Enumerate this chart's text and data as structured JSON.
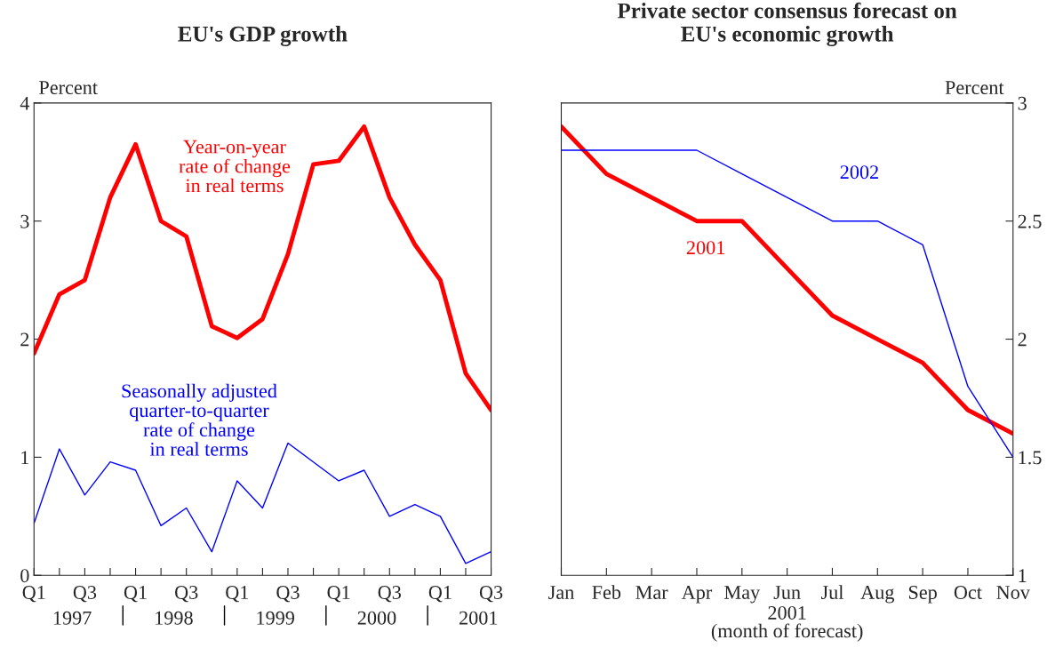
{
  "chart_data": [
    {
      "type": "line",
      "title": "EU's GDP growth",
      "ylabel": "Percent",
      "categories": [
        "Q1",
        null,
        "Q3",
        null,
        "Q1",
        null,
        "Q3",
        null,
        "Q1",
        null,
        "Q3",
        null,
        "Q1",
        null,
        "Q3",
        null,
        "Q1",
        null,
        "Q3"
      ],
      "series": [
        {
          "name": "Year-on-year\nrate of change\nin real terms",
          "color": "#ff0000",
          "values": [
            1.88,
            2.38,
            2.5,
            3.2,
            3.65,
            3.0,
            2.87,
            2.11,
            2.01,
            2.17,
            2.72,
            3.48,
            3.51,
            3.8,
            3.2,
            2.8,
            2.5,
            1.71,
            1.4
          ]
        },
        {
          "name": "Seasonally adjusted\nquarter-to-quarter\nrate of change\nin real terms",
          "color": "#0000ff",
          "values": [
            0.44,
            1.07,
            0.68,
            0.96,
            0.89,
            0.42,
            0.57,
            0.2,
            0.8,
            0.57,
            1.12,
            0.96,
            0.8,
            0.89,
            0.5,
            0.6,
            0.5,
            0.1,
            0.2
          ]
        }
      ],
      "annotations": [
        "1997",
        "1998",
        "1999",
        "2000",
        "2001"
      ],
      "ylim": [
        0,
        4
      ],
      "yticks": [
        0,
        1,
        2,
        3,
        4
      ],
      "grid": false,
      "legend": false
    },
    {
      "type": "line",
      "title": "Private sector consensus forecast on\nEU's economic growth",
      "ylabel": "Percent",
      "xlabel": "2001\n(month of forecast)",
      "categories": [
        "Jan",
        "Feb",
        "Mar",
        "Apr",
        "May",
        "Jun",
        "Jul",
        "Aug",
        "Sep",
        "Oct",
        "Nov"
      ],
      "series": [
        {
          "name": "2001",
          "color": "#ff0000",
          "values": [
            2.9,
            2.7,
            2.6,
            2.5,
            2.5,
            2.3,
            2.1,
            2.0,
            1.9,
            1.7,
            1.6
          ]
        },
        {
          "name": "2002",
          "color": "#0000ff",
          "values": [
            2.8,
            2.8,
            2.8,
            2.8,
            2.7,
            2.6,
            2.5,
            2.5,
            2.4,
            1.8,
            1.5
          ]
        }
      ],
      "ylim": [
        1,
        3
      ],
      "yticks": [
        1,
        1.5,
        2,
        2.5,
        3
      ],
      "grid": false,
      "legend": false
    }
  ]
}
